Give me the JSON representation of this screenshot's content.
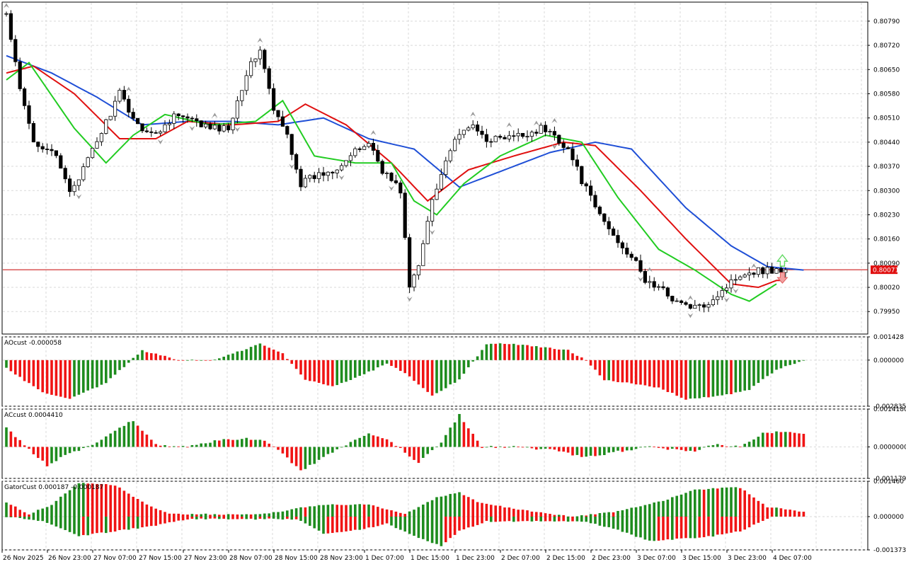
{
  "colors": {
    "background": "#ffffff",
    "grid": "#d9d9d9",
    "frame": "#000000",
    "candle_bull_fill": "#ffffff",
    "candle_bear_fill": "#000000",
    "candle_outline": "#000000",
    "alligator_jaw": "#1f4fd6",
    "alligator_teeth": "#e01010",
    "alligator_lips": "#22cc22",
    "osc_up": "#1e8c1e",
    "osc_down": "#f01414",
    "price_line": "#c80000",
    "price_label_bg": "#e01010",
    "price_label_text": "#ffffff",
    "fractal": "#9a9a9a",
    "signal_up": "#5fd85f",
    "signal_down": "#f2a0a0"
  },
  "chart_data": [
    {
      "type": "candlestick",
      "name": "main",
      "icons": [
        "fractal-up-icon",
        "fractal-down-icon",
        "buy-signal-arrow-icon",
        "sell-signal-arrow-icon"
      ],
      "ylim": [
        0.79885,
        0.80845
      ],
      "y_ticks": [
        "0.80790",
        "0.80720",
        "0.80650",
        "0.80580",
        "0.80510",
        "0.80440",
        "0.80370",
        "0.80300",
        "0.80230",
        "0.80160",
        "0.80090",
        "0.80020",
        "0.79950"
      ],
      "current_price": "0.80071",
      "x_labels": [
        "26 Nov 2025",
        "26 Nov 23:00",
        "27 Nov 07:00",
        "27 Nov 15:00",
        "27 Nov 23:00",
        "28 Nov 07:00",
        "28 Nov 15:00",
        "28 Nov 23:00",
        "1 Dec 07:00",
        "1 Dec 15:00",
        "1 Dec 23:00",
        "2 Dec 07:00",
        "2 Dec 15:00",
        "2 Dec 23:00",
        "3 Dec 07:00",
        "3 Dec 15:00",
        "3 Dec 23:00",
        "4 Dec 07:00"
      ],
      "path_open": 0.8081,
      "path_points": [
        [
          0,
          0.8081
        ],
        [
          3,
          0.8059
        ],
        [
          6,
          0.8044
        ],
        [
          10,
          0.8042
        ],
        [
          14,
          0.803
        ],
        [
          17,
          0.8036
        ],
        [
          21,
          0.8047
        ],
        [
          25,
          0.8058
        ],
        [
          29,
          0.8049
        ],
        [
          33,
          0.8046
        ],
        [
          37,
          0.8052
        ],
        [
          41,
          0.805
        ],
        [
          45,
          0.8048
        ],
        [
          49,
          0.8048
        ],
        [
          53,
          0.8064
        ],
        [
          56,
          0.8071
        ],
        [
          59,
          0.8053
        ],
        [
          62,
          0.8046
        ],
        [
          65,
          0.8032
        ],
        [
          68,
          0.8034
        ],
        [
          72,
          0.8036
        ],
        [
          76,
          0.804
        ],
        [
          80,
          0.8044
        ],
        [
          83,
          0.8036
        ],
        [
          87,
          0.803
        ],
        [
          89,
          0.8002
        ],
        [
          91,
          0.8008
        ],
        [
          94,
          0.8028
        ],
        [
          98,
          0.8042
        ],
        [
          102,
          0.8049
        ],
        [
          106,
          0.8045
        ],
        [
          110,
          0.8045
        ],
        [
          114,
          0.8046
        ],
        [
          118,
          0.8048
        ],
        [
          121,
          0.8046
        ],
        [
          124,
          0.8042
        ],
        [
          127,
          0.8033
        ],
        [
          130,
          0.8025
        ],
        [
          134,
          0.8017
        ],
        [
          138,
          0.8011
        ],
        [
          141,
          0.8004
        ],
        [
          145,
          0.8001
        ],
        [
          149,
          0.7997
        ],
        [
          153,
          0.7996
        ],
        [
          157,
          0.8
        ],
        [
          162,
          0.8006
        ],
        [
          166,
          0.8007
        ],
        [
          169,
          0.8007
        ]
      ],
      "fractal_up_bars": [
        0,
        27,
        46,
        56,
        81,
        103,
        111,
        117,
        121,
        142,
        151,
        165
      ],
      "fractal_down_bars": [
        16,
        34,
        41,
        51,
        63,
        74,
        85,
        89,
        94,
        121,
        140,
        151,
        159,
        161
      ],
      "signal_up_bar": 171,
      "signal_down_bar": 171,
      "alligator": {
        "jaw_anchors": [
          [
            0,
            0.8069
          ],
          [
            10,
            0.8064
          ],
          [
            20,
            0.8057
          ],
          [
            30,
            0.8049
          ],
          [
            40,
            0.805
          ],
          [
            50,
            0.805
          ],
          [
            60,
            0.8049
          ],
          [
            70,
            0.8051
          ],
          [
            80,
            0.8045
          ],
          [
            90,
            0.8042
          ],
          [
            100,
            0.8031
          ],
          [
            110,
            0.8036
          ],
          [
            120,
            0.8041
          ],
          [
            130,
            0.8044
          ],
          [
            138,
            0.8042
          ],
          [
            150,
            0.8025
          ],
          [
            160,
            0.8014
          ],
          [
            168,
            0.8008
          ],
          [
            176,
            0.8007
          ]
        ],
        "teeth_anchors": [
          [
            0,
            0.8064
          ],
          [
            6,
            0.8066
          ],
          [
            15,
            0.8058
          ],
          [
            25,
            0.8045
          ],
          [
            33,
            0.8045
          ],
          [
            40,
            0.805
          ],
          [
            50,
            0.8049
          ],
          [
            60,
            0.805
          ],
          [
            66,
            0.8055
          ],
          [
            75,
            0.8049
          ],
          [
            85,
            0.8038
          ],
          [
            93,
            0.8027
          ],
          [
            102,
            0.8036
          ],
          [
            112,
            0.804
          ],
          [
            123,
            0.8044
          ],
          [
            130,
            0.8043
          ],
          [
            140,
            0.803
          ],
          [
            150,
            0.8016
          ],
          [
            160,
            0.8003
          ],
          [
            166,
            0.8002
          ],
          [
            170,
            0.8004
          ]
        ],
        "lips_anchors": [
          [
            0,
            0.8062
          ],
          [
            5,
            0.8067
          ],
          [
            15,
            0.8048
          ],
          [
            22,
            0.8038
          ],
          [
            28,
            0.8046
          ],
          [
            35,
            0.8052
          ],
          [
            45,
            0.8049
          ],
          [
            55,
            0.805
          ],
          [
            61,
            0.8056
          ],
          [
            68,
            0.804
          ],
          [
            77,
            0.8038
          ],
          [
            85,
            0.8038
          ],
          [
            90,
            0.8027
          ],
          [
            95,
            0.8023
          ],
          [
            101,
            0.8032
          ],
          [
            109,
            0.804
          ],
          [
            119,
            0.8046
          ],
          [
            127,
            0.8044
          ],
          [
            135,
            0.8028
          ],
          [
            144,
            0.8013
          ],
          [
            152,
            0.8007
          ],
          [
            160,
            0.8
          ],
          [
            164,
            0.7998
          ],
          [
            170,
            0.8003
          ]
        ]
      }
    },
    {
      "type": "bar",
      "name": "AOcust",
      "title": "AOcust -0.000058",
      "y_ticks": [
        "0.001428",
        "0.000000",
        "-0.002835"
      ],
      "ylim": [
        -0.002835,
        0.001428
      ],
      "anchors": [
        [
          0,
          -0.0005
        ],
        [
          8,
          -0.002
        ],
        [
          14,
          -0.0024
        ],
        [
          22,
          -0.0014
        ],
        [
          30,
          0.0006
        ],
        [
          38,
          0.0
        ],
        [
          46,
          0.0
        ],
        [
          56,
          0.001
        ],
        [
          61,
          0.0004
        ],
        [
          66,
          -0.0012
        ],
        [
          72,
          -0.0016
        ],
        [
          78,
          -0.001
        ],
        [
          84,
          -0.0002
        ],
        [
          88,
          -0.0008
        ],
        [
          94,
          -0.0022
        ],
        [
          100,
          -0.0012
        ],
        [
          106,
          0.001
        ],
        [
          112,
          0.001
        ],
        [
          124,
          0.0006
        ],
        [
          128,
          0.0
        ],
        [
          132,
          -0.0012
        ],
        [
          144,
          -0.0017
        ],
        [
          150,
          -0.0024
        ],
        [
          158,
          -0.0022
        ],
        [
          164,
          -0.0018
        ],
        [
          170,
          -0.0006
        ],
        [
          176,
          0.0
        ]
      ]
    },
    {
      "type": "bar",
      "name": "ACcust",
      "title": "ACcust 0.0004410",
      "y_ticks": [
        "0.0014180",
        "0.0000000",
        "-0.0011790"
      ],
      "ylim": [
        -0.001179,
        0.001418
      ],
      "anchors": [
        [
          0,
          0.0007
        ],
        [
          5,
          -0.0001
        ],
        [
          9,
          -0.0007
        ],
        [
          13,
          -0.0003
        ],
        [
          18,
          0.0
        ],
        [
          24,
          0.0006
        ],
        [
          28,
          0.001
        ],
        [
          33,
          0.0001
        ],
        [
          40,
          0.0
        ],
        [
          48,
          0.0003
        ],
        [
          56,
          0.0003
        ],
        [
          60,
          -0.0001
        ],
        [
          65,
          -0.0009
        ],
        [
          72,
          -0.0002
        ],
        [
          80,
          0.0005
        ],
        [
          85,
          0.0002
        ],
        [
          91,
          -0.0006
        ],
        [
          96,
          0.0002
        ],
        [
          100,
          0.0012
        ],
        [
          105,
          0.0
        ],
        [
          112,
          0.0
        ],
        [
          120,
          -0.0001
        ],
        [
          128,
          -0.0004
        ],
        [
          134,
          -0.0002
        ],
        [
          142,
          0.0
        ],
        [
          152,
          -0.0002
        ],
        [
          156,
          0.0001
        ],
        [
          162,
          0.0
        ],
        [
          167,
          0.0005
        ],
        [
          172,
          0.0006
        ],
        [
          176,
          0.0005
        ]
      ]
    },
    {
      "type": "bar",
      "name": "GatorCust",
      "title": "GatorCust 0.000187 -0.000187",
      "y_ticks": [
        "0.001460",
        "0.000000",
        "-0.001373"
      ],
      "ylim": [
        -0.001373,
        0.00146
      ],
      "upper_anchors": [
        [
          0,
          0.0006
        ],
        [
          5,
          0.0001
        ],
        [
          10,
          0.0005
        ],
        [
          16,
          0.0014
        ],
        [
          24,
          0.0013
        ],
        [
          30,
          0.0006
        ],
        [
          36,
          0.0001
        ],
        [
          44,
          0.0001
        ],
        [
          52,
          0.0001
        ],
        [
          56,
          0.0001
        ],
        [
          60,
          0.0002
        ],
        [
          66,
          0.0004
        ],
        [
          72,
          0.0005
        ],
        [
          80,
          0.0005
        ],
        [
          84,
          0.0003
        ],
        [
          88,
          0.0001
        ],
        [
          95,
          0.0008
        ],
        [
          100,
          0.001
        ],
        [
          104,
          0.0006
        ],
        [
          110,
          0.0004
        ],
        [
          120,
          0.0001
        ],
        [
          125,
          0.0
        ],
        [
          134,
          0.0002
        ],
        [
          144,
          0.0006
        ],
        [
          152,
          0.0011
        ],
        [
          158,
          0.0012
        ],
        [
          162,
          0.0012
        ],
        [
          168,
          0.0004
        ],
        [
          176,
          0.0002
        ]
      ],
      "lower_anchors": [
        [
          0,
          0.0
        ],
        [
          8,
          0.0002
        ],
        [
          16,
          0.0008
        ],
        [
          24,
          0.0006
        ],
        [
          32,
          0.0004
        ],
        [
          40,
          0.0001
        ],
        [
          56,
          0.0001
        ],
        [
          64,
          0.0001
        ],
        [
          70,
          0.0007
        ],
        [
          76,
          0.0006
        ],
        [
          84,
          0.0003
        ],
        [
          90,
          0.0008
        ],
        [
          96,
          0.0012
        ],
        [
          100,
          0.0006
        ],
        [
          106,
          0.0002
        ],
        [
          114,
          0.0002
        ],
        [
          128,
          0.0002
        ],
        [
          134,
          0.0005
        ],
        [
          142,
          0.001
        ],
        [
          150,
          0.0009
        ],
        [
          156,
          0.0008
        ],
        [
          162,
          0.0006
        ],
        [
          168,
          0.0001
        ]
      ]
    }
  ]
}
